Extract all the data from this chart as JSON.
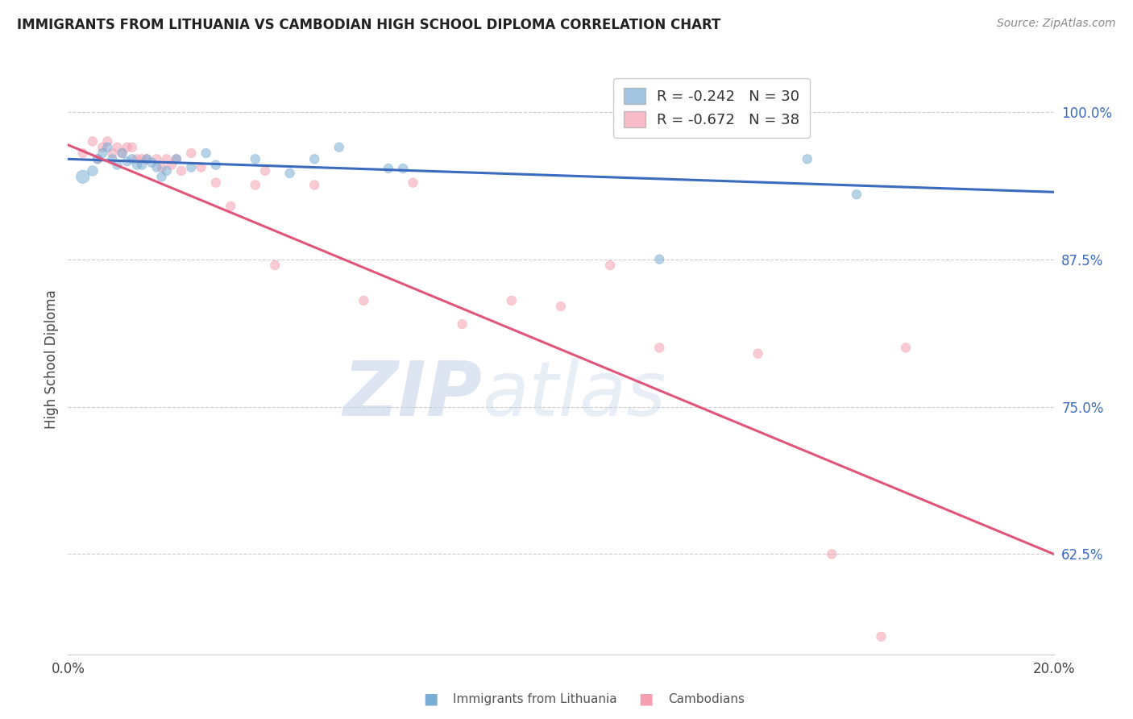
{
  "title": "IMMIGRANTS FROM LITHUANIA VS CAMBODIAN HIGH SCHOOL DIPLOMA CORRELATION CHART",
  "source": "Source: ZipAtlas.com",
  "ylabel": "High School Diploma",
  "ytick_labels": [
    "100.0%",
    "87.5%",
    "75.0%",
    "62.5%"
  ],
  "ytick_values": [
    1.0,
    0.875,
    0.75,
    0.625
  ],
  "xlim": [
    0.0,
    0.2
  ],
  "ylim": [
    0.54,
    1.04
  ],
  "legend1_r": "-0.242",
  "legend1_n": "30",
  "legend2_r": "-0.672",
  "legend2_n": "38",
  "blue_color": "#7aadd4",
  "pink_color": "#f4a0b0",
  "blue_line_color": "#3a6bbf",
  "pink_line_color": "#e0567a",
  "watermark_zip": "ZIP",
  "watermark_atlas": "atlas",
  "blue_scatter_x": [
    0.003,
    0.005,
    0.006,
    0.007,
    0.008,
    0.009,
    0.01,
    0.011,
    0.012,
    0.013,
    0.014,
    0.015,
    0.016,
    0.017,
    0.018,
    0.019,
    0.02,
    0.022,
    0.025,
    0.028,
    0.03,
    0.038,
    0.045,
    0.05,
    0.055,
    0.065,
    0.068,
    0.12,
    0.15,
    0.16
  ],
  "blue_scatter_y": [
    0.945,
    0.95,
    0.96,
    0.965,
    0.97,
    0.96,
    0.955,
    0.965,
    0.958,
    0.96,
    0.955,
    0.955,
    0.96,
    0.957,
    0.953,
    0.945,
    0.95,
    0.96,
    0.953,
    0.965,
    0.955,
    0.96,
    0.948,
    0.96,
    0.97,
    0.952,
    0.952,
    0.875,
    0.96,
    0.93
  ],
  "blue_scatter_size": [
    200,
    120,
    100,
    100,
    100,
    100,
    100,
    100,
    100,
    100,
    100,
    100,
    100,
    100,
    100,
    100,
    100,
    100,
    100,
    100,
    100,
    100,
    100,
    100,
    100,
    100,
    100,
    100,
    100,
    100
  ],
  "pink_scatter_x": [
    0.003,
    0.005,
    0.006,
    0.007,
    0.008,
    0.009,
    0.01,
    0.011,
    0.012,
    0.013,
    0.014,
    0.015,
    0.016,
    0.018,
    0.019,
    0.02,
    0.021,
    0.022,
    0.023,
    0.025,
    0.027,
    0.03,
    0.033,
    0.038,
    0.04,
    0.042,
    0.05,
    0.06,
    0.07,
    0.08,
    0.09,
    0.1,
    0.11,
    0.12,
    0.14,
    0.155,
    0.165,
    0.17
  ],
  "pink_scatter_y": [
    0.965,
    0.975,
    0.96,
    0.97,
    0.975,
    0.965,
    0.97,
    0.965,
    0.97,
    0.97,
    0.96,
    0.96,
    0.96,
    0.96,
    0.953,
    0.96,
    0.955,
    0.96,
    0.95,
    0.965,
    0.953,
    0.94,
    0.92,
    0.938,
    0.95,
    0.87,
    0.938,
    0.84,
    0.94,
    0.82,
    0.84,
    0.835,
    0.87,
    0.8,
    0.795,
    0.625,
    0.555,
    0.8
  ],
  "pink_scatter_size": [
    100,
    100,
    100,
    100,
    100,
    100,
    100,
    100,
    100,
    100,
    100,
    100,
    100,
    100,
    100,
    100,
    100,
    100,
    100,
    100,
    100,
    100,
    100,
    100,
    100,
    100,
    100,
    100,
    100,
    100,
    100,
    100,
    100,
    100,
    100,
    100,
    100,
    100
  ],
  "blue_line_x": [
    0.0,
    0.2
  ],
  "blue_line_y": [
    0.96,
    0.932
  ],
  "pink_line_x": [
    0.0,
    0.2
  ],
  "pink_line_y": [
    0.972,
    0.625
  ]
}
